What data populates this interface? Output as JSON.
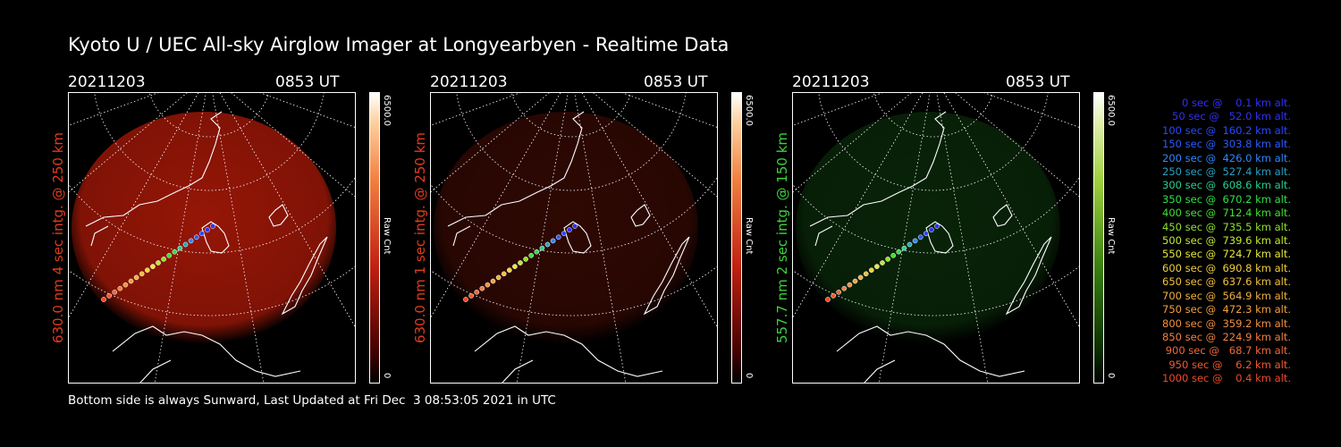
{
  "title": "Kyoto U / UEC All-sky Airglow Imager at Longyearbyen - Realtime Data",
  "date": "20211203",
  "time": "0853 UT",
  "panels": [
    {
      "label": "630.0 nm 4 sec intg. @ 250 km",
      "label_color": "#e03c1c",
      "colormap": "red",
      "glow_color": "#b01a08",
      "glow_opacity": 0.85,
      "cbar_max": "6500.0",
      "cbar_unit": "Raw Cnt",
      "cbar_min": "0"
    },
    {
      "label": "630.0 nm 1 sec intg. @ 250 km",
      "label_color": "#e03c1c",
      "colormap": "red",
      "glow_color": "#3a0a04",
      "glow_opacity": 0.8,
      "cbar_max": "6500.0",
      "cbar_unit": "Raw Cnt",
      "cbar_min": "0"
    },
    {
      "label": "557.7 nm 2 sec intg. @ 150 km",
      "label_color": "#3cd23c",
      "colormap": "green",
      "glow_color": "#0a2a0a",
      "glow_opacity": 0.85,
      "cbar_max": "6500.0",
      "cbar_unit": "Raw Cnt",
      "cbar_min": "0"
    }
  ],
  "legend": [
    {
      "text": "0 sec @    0.1 km alt.",
      "color": "#3030ff"
    },
    {
      "text": "50 sec @   52.0 km alt.",
      "color": "#3232f0"
    },
    {
      "text": "100 sec @  160.2 km alt.",
      "color": "#2a48ff"
    },
    {
      "text": "150 sec @  303.8 km alt.",
      "color": "#2a5cff"
    },
    {
      "text": "200 sec @  426.0 km alt.",
      "color": "#2e86ff"
    },
    {
      "text": "250 sec @  527.4 km alt.",
      "color": "#2aa0c0"
    },
    {
      "text": "300 sec @  608.6 km alt.",
      "color": "#26d090"
    },
    {
      "text": "350 sec @  670.2 km alt.",
      "color": "#2ee04a"
    },
    {
      "text": "400 sec @  712.4 km alt.",
      "color": "#40e030"
    },
    {
      "text": "450 sec @  735.5 km alt.",
      "color": "#8ee030"
    },
    {
      "text": "500 sec @  739.6 km alt.",
      "color": "#c0e830"
    },
    {
      "text": "550 sec @  724.7 km alt.",
      "color": "#e6e83a"
    },
    {
      "text": "600 sec @  690.8 km alt.",
      "color": "#f0d040"
    },
    {
      "text": "650 sec @  637.6 km alt.",
      "color": "#f0c040"
    },
    {
      "text": "700 sec @  564.9 km alt.",
      "color": "#f0b040"
    },
    {
      "text": "750 sec @  472.3 km alt.",
      "color": "#f0a040"
    },
    {
      "text": "800 sec @  359.2 km alt.",
      "color": "#f09040"
    },
    {
      "text": "850 sec @  224.9 km alt.",
      "color": "#f08040"
    },
    {
      "text": "900 sec @   68.7 km alt.",
      "color": "#f06838"
    },
    {
      "text": "950 sec @    6.2 km alt.",
      "color": "#f05a30"
    },
    {
      "text": "1000 sec @    0.4 km alt.",
      "color": "#f04a28"
    }
  ],
  "footer": "Bottom side is always Sunward, Last Updated at Fri Dec  3 08:53:05 2021 in UTC"
}
